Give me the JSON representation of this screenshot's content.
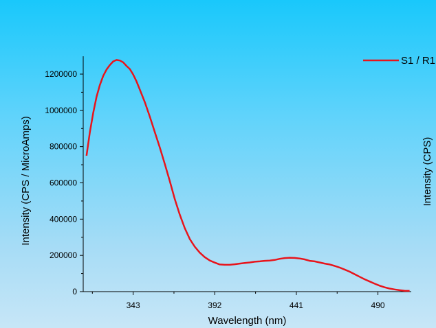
{
  "chart_data": {
    "type": "line",
    "title": "",
    "xlabel": "Wavelength (nm)",
    "ylabel": "Intensity (CPS / MicroAmps)",
    "y2label": "Intensity (CPS)",
    "xlim": [
      313,
      510
    ],
    "ylim": [
      0,
      1300000
    ],
    "x_ticks": [
      343,
      392,
      441,
      490
    ],
    "x_tick_labels": [
      "343",
      "392",
      "441",
      "490"
    ],
    "y_ticks": [
      0,
      200000,
      400000,
      600000,
      800000,
      1000000,
      1200000
    ],
    "y_tick_labels": [
      "0",
      "200000",
      "400000",
      "600000",
      "800000",
      "1000000",
      "1200000"
    ],
    "grid": false,
    "legend_position": "top-right",
    "series": [
      {
        "name": "S1 / R1",
        "color": "#e8141b",
        "x": [
          315,
          317,
          319,
          321,
          323,
          325,
          327,
          329,
          331,
          333,
          335,
          337,
          339,
          341,
          343,
          345,
          347,
          350,
          353,
          356,
          359,
          362,
          365,
          368,
          371,
          374,
          377,
          380,
          383,
          386,
          389,
          392,
          395,
          398,
          401,
          404,
          407,
          410,
          413,
          416,
          419,
          422,
          425,
          428,
          431,
          434,
          437,
          440,
          443,
          446,
          449,
          452,
          455,
          458,
          461,
          464,
          467,
          470,
          473,
          476,
          479,
          482,
          485,
          488,
          491,
          494,
          497,
          500,
          503,
          506,
          509
        ],
        "y": [
          750000,
          880000,
          985000,
          1075000,
          1140000,
          1190000,
          1225000,
          1250000,
          1270000,
          1278000,
          1275000,
          1265000,
          1245000,
          1228000,
          1198000,
          1160000,
          1115000,
          1045000,
          965000,
          880000,
          795000,
          705000,
          610000,
          510000,
          425000,
          350000,
          290000,
          248000,
          215000,
          190000,
          172000,
          160000,
          150000,
          148000,
          148000,
          151000,
          155000,
          158000,
          161000,
          165000,
          167000,
          170000,
          171000,
          175000,
          181000,
          185000,
          187000,
          186000,
          183000,
          178000,
          170000,
          167000,
          161000,
          155000,
          150000,
          142000,
          133000,
          122000,
          110000,
          96000,
          82000,
          68000,
          56000,
          44000,
          33000,
          24000,
          17000,
          12000,
          8000,
          5000,
          4000
        ]
      }
    ]
  }
}
